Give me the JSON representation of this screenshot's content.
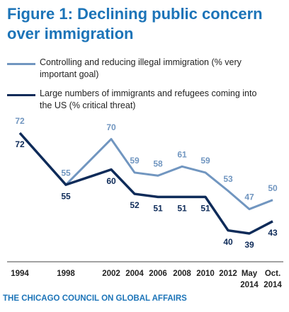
{
  "chart_data": {
    "type": "line",
    "title": "Figure 1: Declining public concern over immigration",
    "categories": [
      "1994",
      "1998",
      "2002",
      "2004",
      "2006",
      "2008",
      "2010",
      "2012",
      "May 2014",
      "Oct. 2014"
    ],
    "series": [
      {
        "name": "Controlling and reducing illegal immigration (% very important goal)",
        "color": "#7196c0",
        "values": [
          72,
          55,
          70,
          59,
          58,
          61,
          59,
          53,
          47,
          50
        ]
      },
      {
        "name": "Large numbers of immigrants and refugees coming into the US (% critical threat)",
        "color": "#0e2b59",
        "values": [
          72,
          55,
          60,
          52,
          51,
          51,
          51,
          40,
          39,
          43
        ]
      }
    ],
    "source": "THE CHICAGO COUNCIL ON GLOBAL AFFAIRS"
  }
}
